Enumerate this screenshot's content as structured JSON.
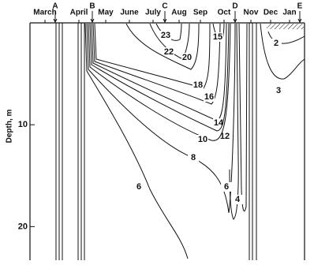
{
  "chart_data": {
    "type": "contour",
    "y_label": "Depth, m",
    "categories": [
      "March",
      "April",
      "May",
      "June",
      "July",
      "Aug",
      "Sep",
      "Oct",
      "Nov",
      "Dec",
      "Jan"
    ],
    "markers": [
      "A",
      "B",
      "C",
      "D",
      "E"
    ],
    "ylim": [
      0,
      23.3
    ],
    "yticks": [
      10,
      20
    ],
    "levels": [
      23,
      22,
      20,
      18,
      16,
      15,
      14,
      12,
      10,
      8,
      6,
      6,
      4,
      3,
      2
    ]
  }
}
